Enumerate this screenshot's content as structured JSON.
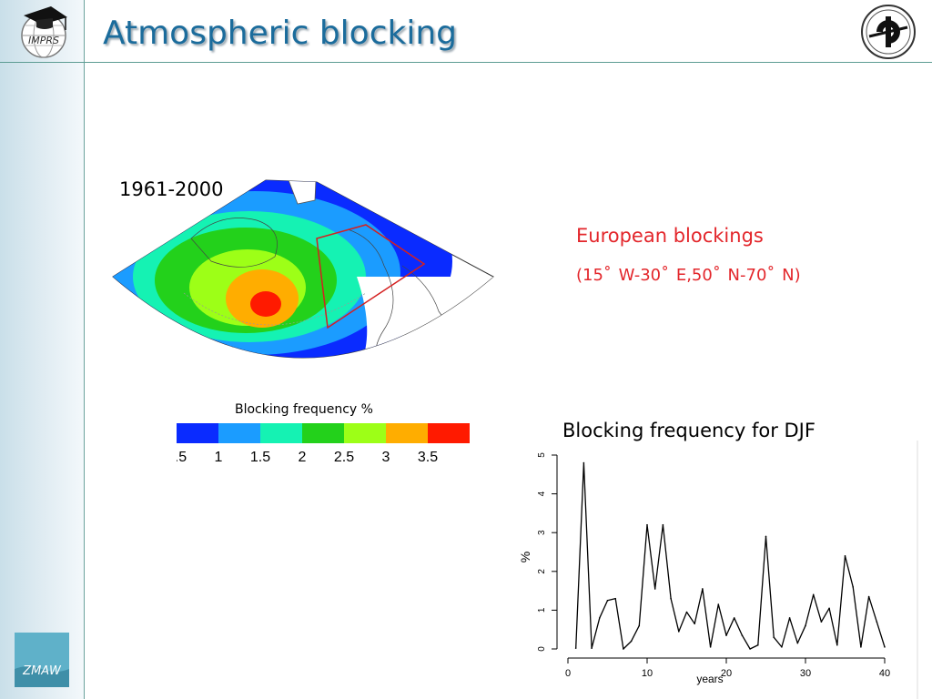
{
  "slide": {
    "title": "Atmospheric blocking",
    "logo_left_text": "IMPRS",
    "logo_bottom_text": "ZMAW"
  },
  "map_panel": {
    "period": "1961-2000",
    "colorbar_label": "Blocking frequency %",
    "colorbar_colors": [
      "#0a2bff",
      "#1b9cff",
      "#15f2b3",
      "#23d11b",
      "#9dff17",
      "#ffad00",
      "#ff1a00"
    ],
    "colorbar_ticks": [
      "0.5",
      "1",
      "1.5",
      "2",
      "2.5",
      "3",
      "3.5"
    ]
  },
  "annotation": {
    "title": "European blockings",
    "range": "(15˚ W-30˚ E,50˚ N-70˚ N)"
  },
  "colors": {
    "accent_title": "#1b6c9c",
    "annotation": "#e3262b",
    "rule": "#5d9c93"
  },
  "chart_data": {
    "type": "line",
    "title": "Blocking frequency for DJF",
    "xlabel": "years",
    "ylabel": "%",
    "xlim": [
      0,
      40
    ],
    "ylim": [
      0,
      5
    ],
    "xticks": [
      0,
      10,
      20,
      30,
      40
    ],
    "yticks": [
      0,
      1,
      2,
      3,
      4,
      5
    ],
    "x": [
      1,
      2,
      3,
      4,
      5,
      6,
      7,
      8,
      9,
      10,
      11,
      12,
      13,
      14,
      15,
      16,
      17,
      18,
      19,
      20,
      21,
      22,
      23,
      24,
      25,
      26,
      27,
      28,
      29,
      30,
      31,
      32,
      33,
      34,
      35,
      36,
      37,
      38,
      39,
      40
    ],
    "values": [
      0.02,
      4.8,
      0.02,
      0.8,
      1.25,
      1.3,
      0.0,
      0.2,
      0.6,
      3.2,
      1.55,
      3.2,
      1.3,
      0.45,
      0.95,
      0.65,
      1.55,
      0.05,
      1.15,
      0.35,
      0.8,
      0.35,
      0.0,
      0.1,
      2.9,
      0.3,
      0.05,
      0.8,
      0.15,
      0.6,
      1.4,
      0.7,
      1.05,
      0.1,
      2.4,
      1.6,
      0.05,
      1.35,
      0.7,
      0.05
    ]
  }
}
